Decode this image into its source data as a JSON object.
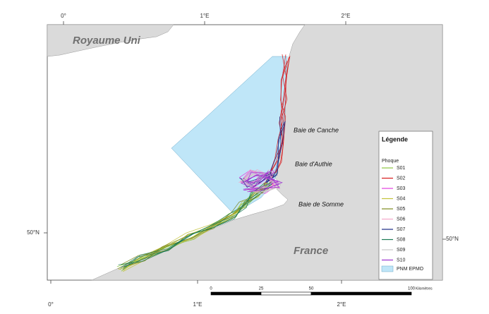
{
  "graticule": {
    "top": [
      "0°",
      "1°E",
      "2°E"
    ],
    "bottom": [
      "0°",
      "1°E",
      "2°E"
    ],
    "left": "50°N",
    "right": "50°N"
  },
  "places": {
    "uk": "Royaume Uni",
    "france": "France",
    "canche": "Baie de Canche",
    "authie": "Baie d'Authie",
    "somme": "Baie de Somme"
  },
  "legend": {
    "title": "Légende",
    "subtitle": "Phoque",
    "series": [
      {
        "name": "S01",
        "color": "#8cc63f"
      },
      {
        "name": "S02",
        "color": "#d7191c"
      },
      {
        "name": "S03",
        "color": "#e23fe0"
      },
      {
        "name": "S04",
        "color": "#c3c33a"
      },
      {
        "name": "S05",
        "color": "#7f8a1e"
      },
      {
        "name": "S06",
        "color": "#f3a7c9"
      },
      {
        "name": "S07",
        "color": "#1c2a86"
      },
      {
        "name": "S08",
        "color": "#1d7a55"
      },
      {
        "name": "S09",
        "color": "#c9c9c9"
      },
      {
        "name": "S10",
        "color": "#9b2fd0"
      }
    ],
    "area": {
      "name": "PNM EPMO",
      "color": "#bfe6f8"
    }
  },
  "scale_bar": {
    "ticks": [
      0,
      25,
      50,
      100
    ],
    "unit": "Kilomètres"
  }
}
